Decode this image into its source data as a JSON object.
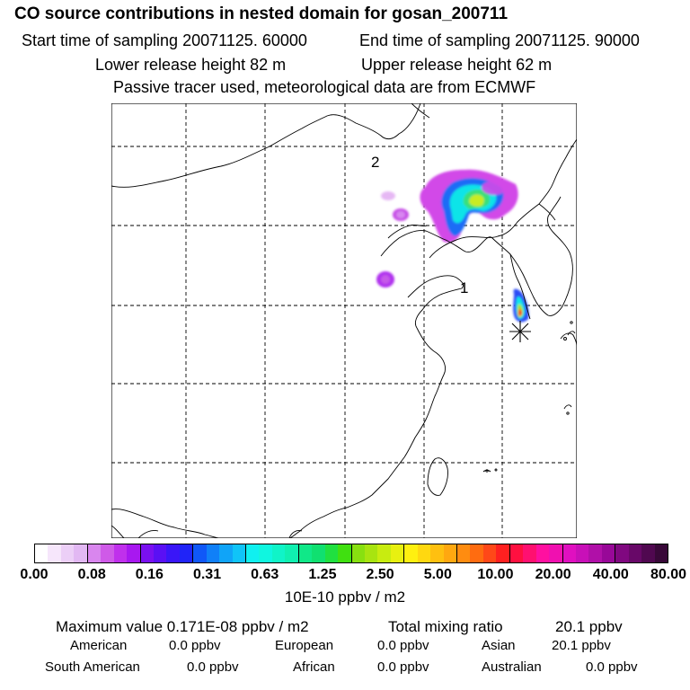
{
  "header": {
    "title": "CO  source contributions in nested domain for gosan_200711",
    "start_label": "Start time of sampling 20071125. 60000",
    "end_label": "End time of sampling 20071125. 90000",
    "lower_label": "Lower release height   82 m",
    "upper_label": "Upper release height   62 m",
    "tracer_label": "Passive tracer used, meteorological data are from ECMWF"
  },
  "map": {
    "region_labels": [
      "2",
      "1"
    ],
    "receptor_symbol": "asterisk"
  },
  "colorbar": {
    "tick_labels": [
      "0.00",
      "0.08",
      "0.16",
      "0.31",
      "0.63",
      "1.25",
      "2.50",
      "5.00",
      "10.00",
      "20.00",
      "40.00",
      "80.00"
    ],
    "units": "10E-10 ppbv / m2",
    "colors": [
      "#ffffff",
      "#f6e6fb",
      "#eccff7",
      "#e2b8f3",
      "#d986ee",
      "#cf5ae8",
      "#c030ec",
      "#a818f0",
      "#7a10f0",
      "#5a10f4",
      "#3a16f8",
      "#2024f8",
      "#1058f8",
      "#1080f8",
      "#10a4f8",
      "#10c4f8",
      "#10f0f0",
      "#10f6e0",
      "#10f4c8",
      "#10f0b0",
      "#10e888",
      "#10e070",
      "#20e040",
      "#40e010",
      "#88e010",
      "#a8e410",
      "#c8ec10",
      "#e8f010",
      "#fff010",
      "#ffd810",
      "#ffc010",
      "#ffa810",
      "#ff8c10",
      "#ff6c10",
      "#ff4818",
      "#ff2020",
      "#ff1040",
      "#ff1070",
      "#ff10a0",
      "#f010b0",
      "#e010c0",
      "#c810b8",
      "#b010a8",
      "#980898",
      "#800880",
      "#680868",
      "#500850",
      "#380838"
    ]
  },
  "stats": {
    "max_label": "Maximum value  0.171E-08 ppbv / m2",
    "total_label": "Total mixing ratio",
    "total_value": "20.1 ppbv",
    "regions": [
      {
        "name": "American",
        "value": "0.0 ppbv"
      },
      {
        "name": "European",
        "value": "0.0 ppbv"
      },
      {
        "name": "Asian",
        "value": "20.1 ppbv"
      },
      {
        "name": "South American",
        "value": "0.0 ppbv"
      },
      {
        "name": "African",
        "value": "0.0 ppbv"
      },
      {
        "name": "Australian",
        "value": "0.0 ppbv"
      }
    ]
  }
}
